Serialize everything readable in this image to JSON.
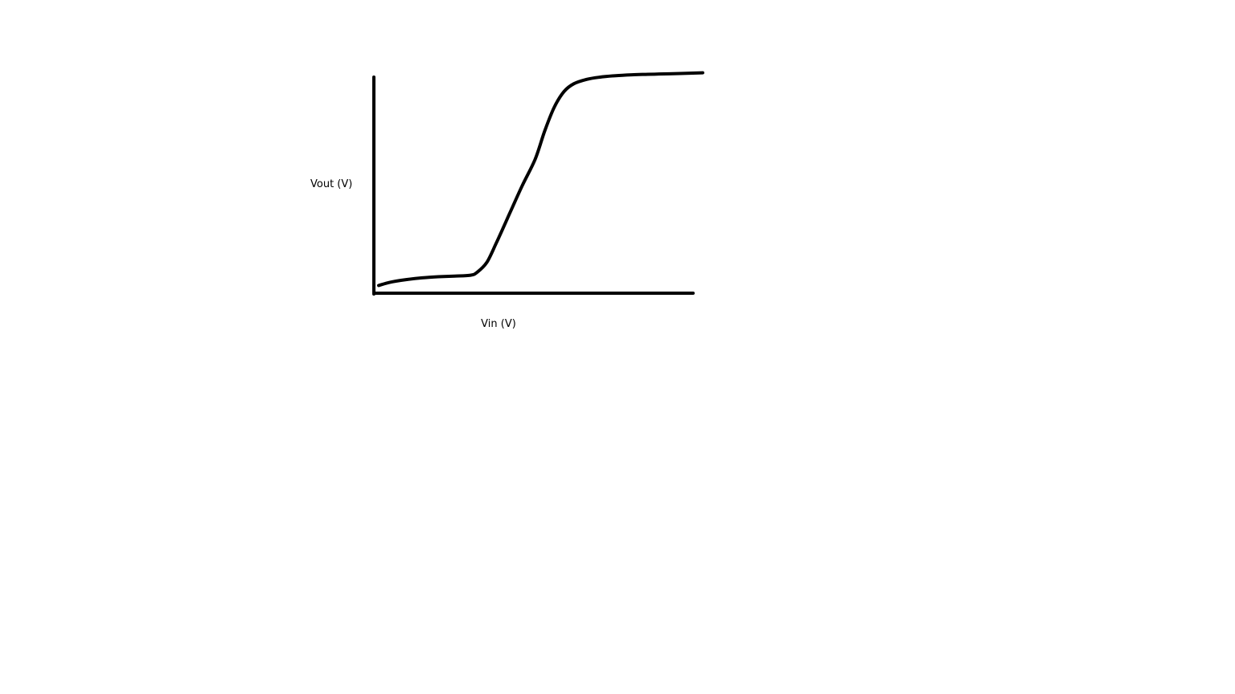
{
  "chart_data": {
    "type": "line",
    "title": "",
    "xlabel": "Vin (V)",
    "ylabel": "Vout (V)",
    "xlim": [
      0,
      10
    ],
    "ylim": [
      0,
      10
    ],
    "grid": false,
    "ticks_shown": false,
    "series": [
      {
        "x": [
          0.15,
          0.5,
          1.0,
          1.5,
          2.0,
          2.5,
          3.0,
          3.2,
          3.5,
          3.8,
          4.2,
          4.6,
          5.0,
          5.3,
          5.6,
          5.9,
          6.2,
          6.6,
          7.0,
          7.5,
          8.0,
          8.5,
          9.0,
          9.5,
          10.2
        ],
        "y": [
          0.35,
          0.5,
          0.62,
          0.7,
          0.75,
          0.78,
          0.82,
          0.95,
          1.4,
          2.3,
          3.6,
          4.9,
          6.1,
          7.4,
          8.5,
          9.2,
          9.55,
          9.75,
          9.85,
          9.92,
          9.96,
          9.98,
          10.0,
          10.02,
          10.05
        ]
      }
    ],
    "colors": {
      "line": "#000000",
      "axis": "#000000"
    }
  }
}
